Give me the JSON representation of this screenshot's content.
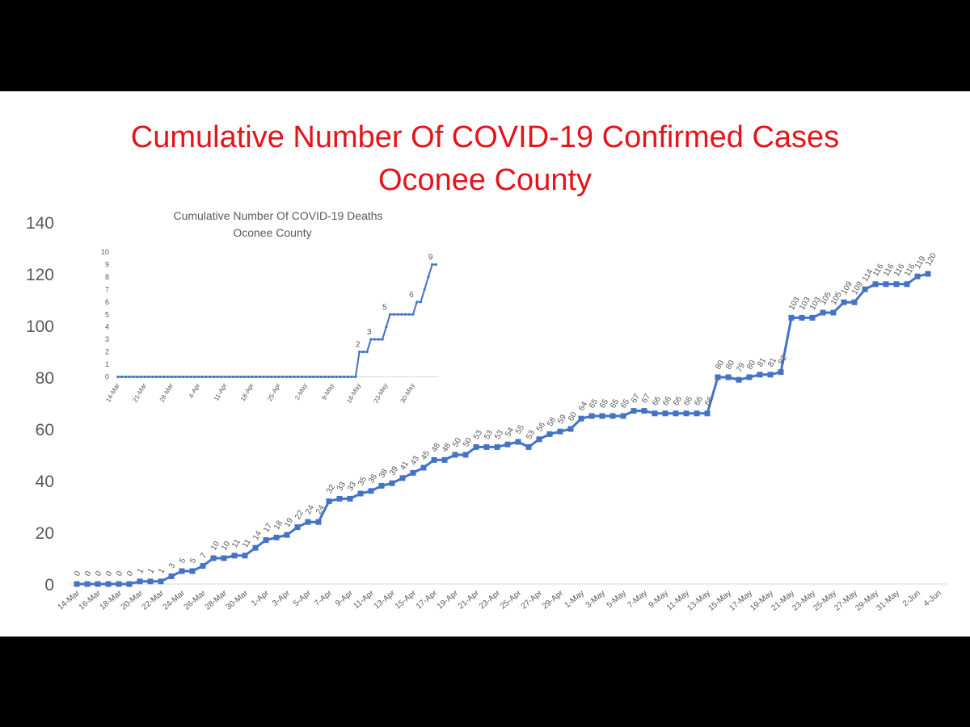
{
  "title_line1": "Cumulative Number Of COVID-19 Confirmed Cases",
  "title_line2": "Oconee County",
  "colors": {
    "title": "#e3151a",
    "series": "#4472c4",
    "text": "#595959",
    "axis": "#d9d9d9"
  },
  "chart_data": [
    {
      "type": "line",
      "title": "Cumulative Number Of COVID-19 Confirmed Cases Oconee County",
      "ylim": [
        0,
        140
      ],
      "yticks": [
        0,
        20,
        40,
        60,
        80,
        100,
        120,
        140
      ],
      "grid": false,
      "x_tick_labels": [
        "14-Mar",
        "16-Mar",
        "18-Mar",
        "20-Mar",
        "22-Mar",
        "24-Mar",
        "26-Mar",
        "28-Mar",
        "30-Mar",
        "1-Apr",
        "3-Apr",
        "5-Apr",
        "7-Apr",
        "9-Apr",
        "11-Apr",
        "13-Apr",
        "15-Apr",
        "17-Apr",
        "19-Apr",
        "21-Apr",
        "23-Apr",
        "25-Apr",
        "27-Apr",
        "29-Apr",
        "1-May",
        "3-May",
        "5-May",
        "7-May",
        "9-May",
        "11-May",
        "13-May",
        "15-May",
        "17-May",
        "19-May",
        "21-May",
        "23-May",
        "25-May",
        "27-May",
        "29-May",
        "31-May",
        "2-Jun",
        "4-Jun"
      ],
      "series": [
        {
          "values": [
            0,
            0,
            0,
            0,
            0,
            0,
            1,
            1,
            1,
            3,
            5,
            5,
            7,
            10,
            10,
            11,
            11,
            14,
            17,
            18,
            19,
            22,
            24,
            24,
            32,
            33,
            33,
            35,
            36,
            38,
            39,
            41,
            43,
            45,
            48,
            48,
            50,
            50,
            53,
            53,
            53,
            54,
            55,
            53,
            56,
            58,
            59,
            60,
            64,
            65,
            65,
            65,
            65,
            67,
            67,
            66,
            66,
            66,
            66,
            66,
            66,
            80,
            80,
            79,
            80,
            81,
            81,
            82,
            103,
            103,
            103,
            105,
            105,
            109,
            109,
            114,
            116,
            116,
            116,
            116,
            119,
            120
          ]
        }
      ]
    },
    {
      "type": "line",
      "title": "Cumulative Number Of COVID-19 Deaths Oconee County",
      "ylim": [
        0,
        10
      ],
      "yticks": [
        0,
        1,
        2,
        3,
        4,
        5,
        6,
        7,
        8,
        9,
        10
      ],
      "grid": false,
      "x_tick_labels": [
        "14-Mar",
        "21-Mar",
        "28-Mar",
        "4-Apr",
        "11-Apr",
        "18-Apr",
        "25-Apr",
        "2-May",
        "9-May",
        "16-May",
        "23-May",
        "30-May"
      ],
      "data_labels": [
        {
          "day": 63,
          "value": 2
        },
        {
          "day": 66,
          "value": 3
        },
        {
          "day": 70,
          "value": 5
        },
        {
          "day": 77,
          "value": 6
        },
        {
          "day": 82,
          "value": 9
        }
      ],
      "series": [
        {
          "values": [
            0,
            0,
            0,
            0,
            0,
            0,
            0,
            0,
            0,
            0,
            0,
            0,
            0,
            0,
            0,
            0,
            0,
            0,
            0,
            0,
            0,
            0,
            0,
            0,
            0,
            0,
            0,
            0,
            0,
            0,
            0,
            0,
            0,
            0,
            0,
            0,
            0,
            0,
            0,
            0,
            0,
            0,
            0,
            0,
            0,
            0,
            0,
            0,
            0,
            0,
            0,
            0,
            0,
            0,
            0,
            0,
            0,
            0,
            0,
            0,
            0,
            0,
            0,
            2,
            2,
            2,
            3,
            3,
            3,
            3,
            4,
            5,
            5,
            5,
            5,
            5,
            5,
            5,
            6,
            6,
            7,
            8,
            9,
            9
          ]
        }
      ]
    }
  ]
}
